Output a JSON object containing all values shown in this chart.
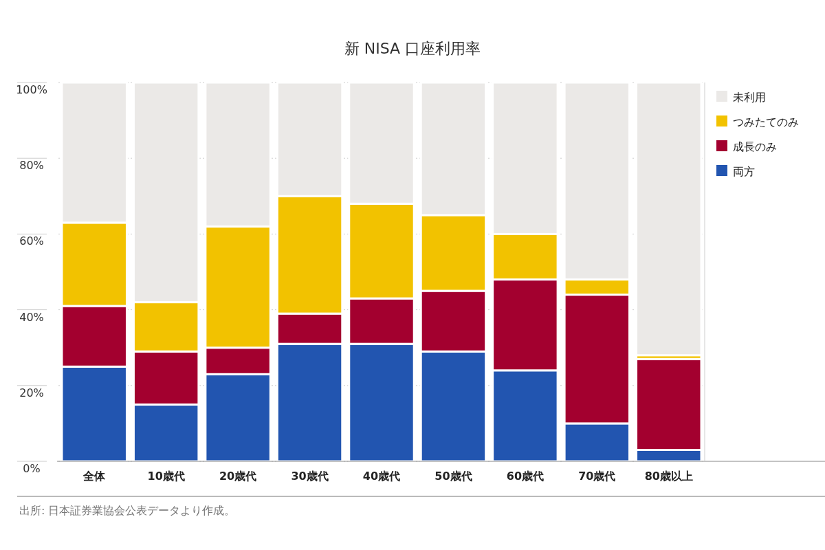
{
  "chart_data": {
    "type": "bar",
    "stacked": true,
    "title": "新 NISA 口座利用率",
    "categories": [
      "全体",
      "10歳代",
      "20歳代",
      "30歳代",
      "40歳代",
      "50歳代",
      "60歳代",
      "70歳代",
      "80歳以上"
    ],
    "series": [
      {
        "name": "両方",
        "color": "#2255b0",
        "values": [
          25,
          15,
          23,
          31,
          31,
          29,
          24,
          10,
          3
        ]
      },
      {
        "name": "成長のみ",
        "color": "#a3002f",
        "values": [
          16,
          14,
          7,
          8,
          12,
          16,
          24,
          34,
          24
        ]
      },
      {
        "name": "つみたてのみ",
        "color": "#f2c200",
        "values": [
          22,
          13,
          32,
          31,
          25,
          20,
          12,
          4,
          1
        ]
      },
      {
        "name": "未利用",
        "color": "#ebe9e7",
        "values": [
          37,
          58,
          38,
          30,
          32,
          35,
          40,
          52,
          72
        ]
      }
    ],
    "ylim": [
      0,
      100
    ],
    "yticks": [
      {
        "value": 0,
        "label": "0%"
      },
      {
        "value": 20,
        "label": "20%"
      },
      {
        "value": 40,
        "label": "40%"
      },
      {
        "value": 60,
        "label": "60%"
      },
      {
        "value": 80,
        "label": "80%"
      },
      {
        "value": 100,
        "label": "100%"
      }
    ],
    "grid": "y",
    "legend": "top right",
    "annotations": [
      "出所: 日本証券業協会公表データより作成。"
    ]
  }
}
